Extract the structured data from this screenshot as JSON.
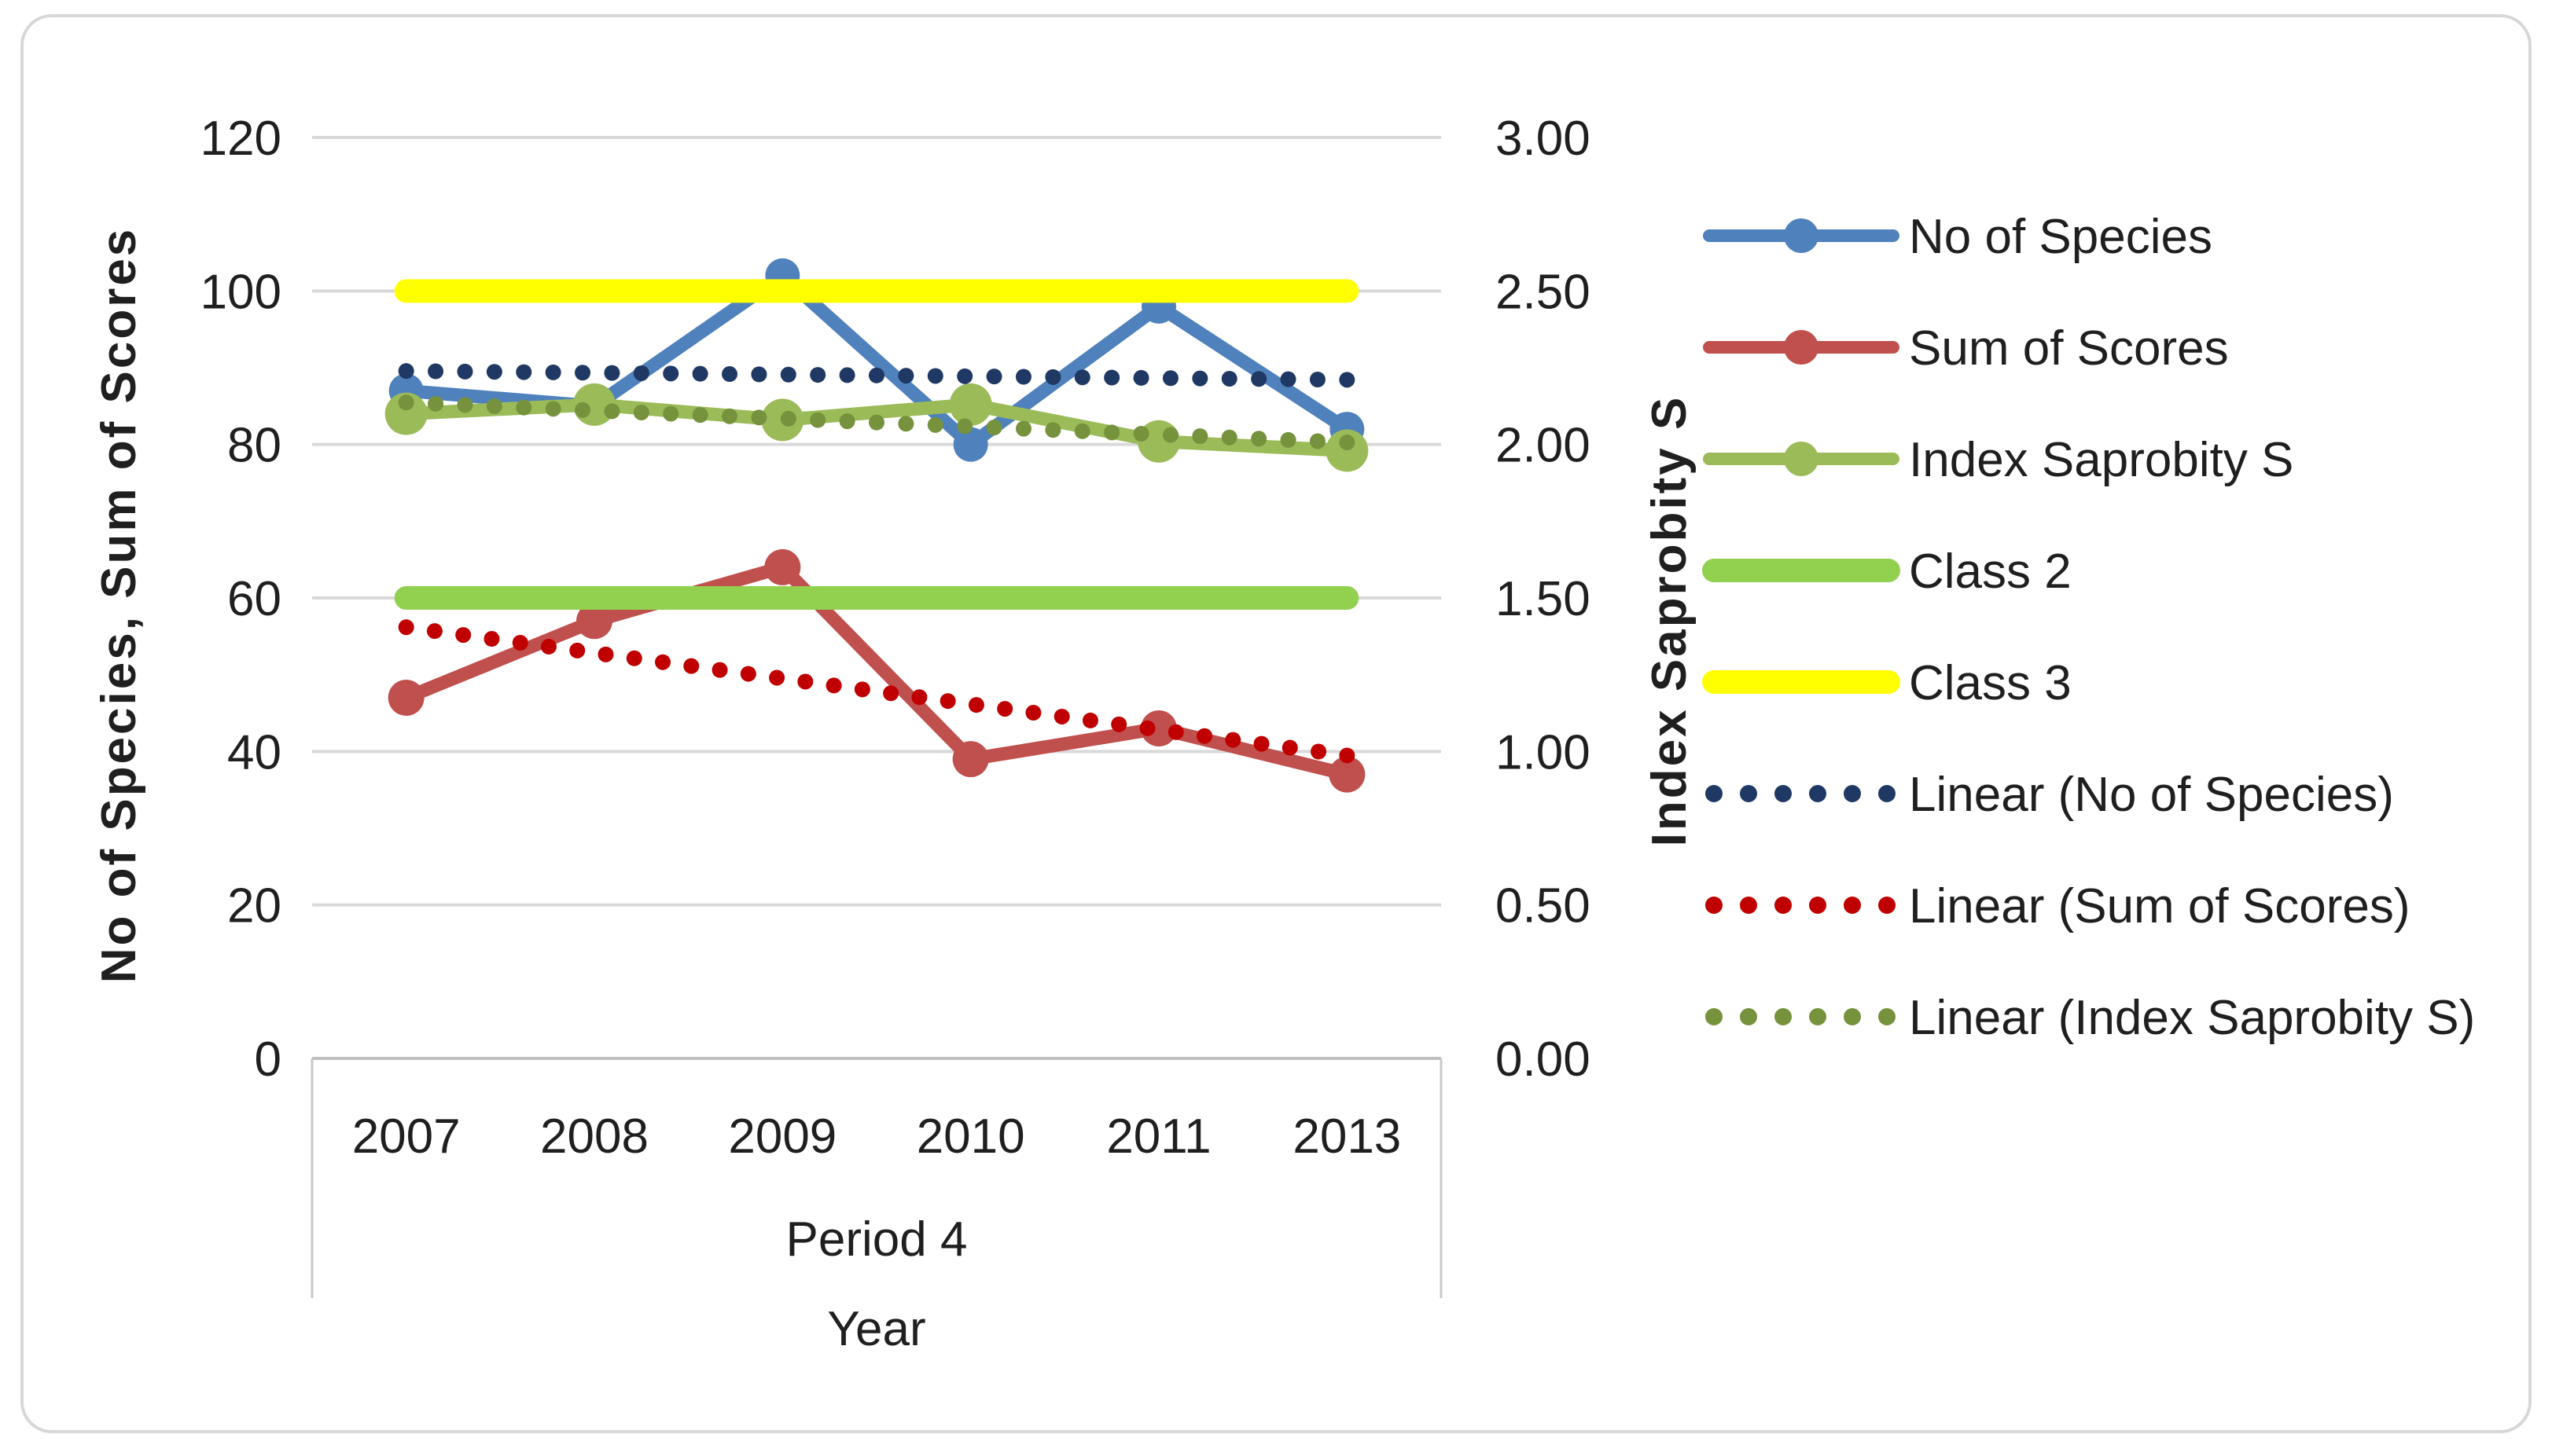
{
  "chart_data": {
    "type": "line",
    "title": "",
    "categories": [
      "2007",
      "2008",
      "2009",
      "2010",
      "2011",
      "2013"
    ],
    "x_axis": {
      "group_label": "Period 4",
      "title": "Year"
    },
    "left_axis": {
      "title": "No of Species, Sum of Scores",
      "min": 0,
      "max": 120,
      "step": 20,
      "tick_labels": [
        "0",
        "20",
        "40",
        "60",
        "80",
        "100",
        "120"
      ]
    },
    "right_axis": {
      "title": "Index Saprobity S",
      "min": 0,
      "max": 3,
      "step": 0.5,
      "tick_labels": [
        "0.00",
        "0.50",
        "1.00",
        "1.50",
        "2.00",
        "2.50",
        "3.00"
      ]
    },
    "grid": true,
    "legend_position": "right",
    "series": [
      {
        "name": "No of Species",
        "axis": "left",
        "color": "#4F81BD",
        "style": "line-marker",
        "marker_r": 22,
        "values": [
          87,
          85,
          102,
          80,
          98,
          82
        ]
      },
      {
        "name": "Sum of Scores",
        "axis": "left",
        "color": "#C0504D",
        "style": "line-marker",
        "marker_r": 23,
        "values": [
          47,
          57,
          64,
          39,
          43,
          37
        ]
      },
      {
        "name": "Index Saprobity S",
        "axis": "right",
        "color": "#9BBB59",
        "style": "line-marker",
        "marker_r": 27,
        "values": [
          2.1,
          2.13,
          2.08,
          2.13,
          2.01,
          1.98
        ]
      },
      {
        "name": "Class 2",
        "axis": "right",
        "color": "#92D050",
        "style": "thick-line",
        "values": [
          1.5,
          1.5,
          1.5,
          1.5,
          1.5,
          1.5
        ]
      },
      {
        "name": "Class 3",
        "axis": "right",
        "color": "#FFFF00",
        "style": "thick-line",
        "values": [
          2.5,
          2.5,
          2.5,
          2.5,
          2.5,
          2.5
        ]
      },
      {
        "name": "Linear (No of Species)",
        "axis": "left",
        "color": "#1F3864",
        "style": "dotted-trend",
        "trend_source": "No of Species"
      },
      {
        "name": "Linear (Sum of Scores)",
        "axis": "left",
        "color": "#C00000",
        "style": "dotted-trend",
        "trend_source": "Sum of Scores"
      },
      {
        "name": "Linear (Index Saprobity S)",
        "axis": "right",
        "color": "#76923C",
        "style": "dotted-trend",
        "trend_source": "Index Saprobity S"
      }
    ]
  }
}
